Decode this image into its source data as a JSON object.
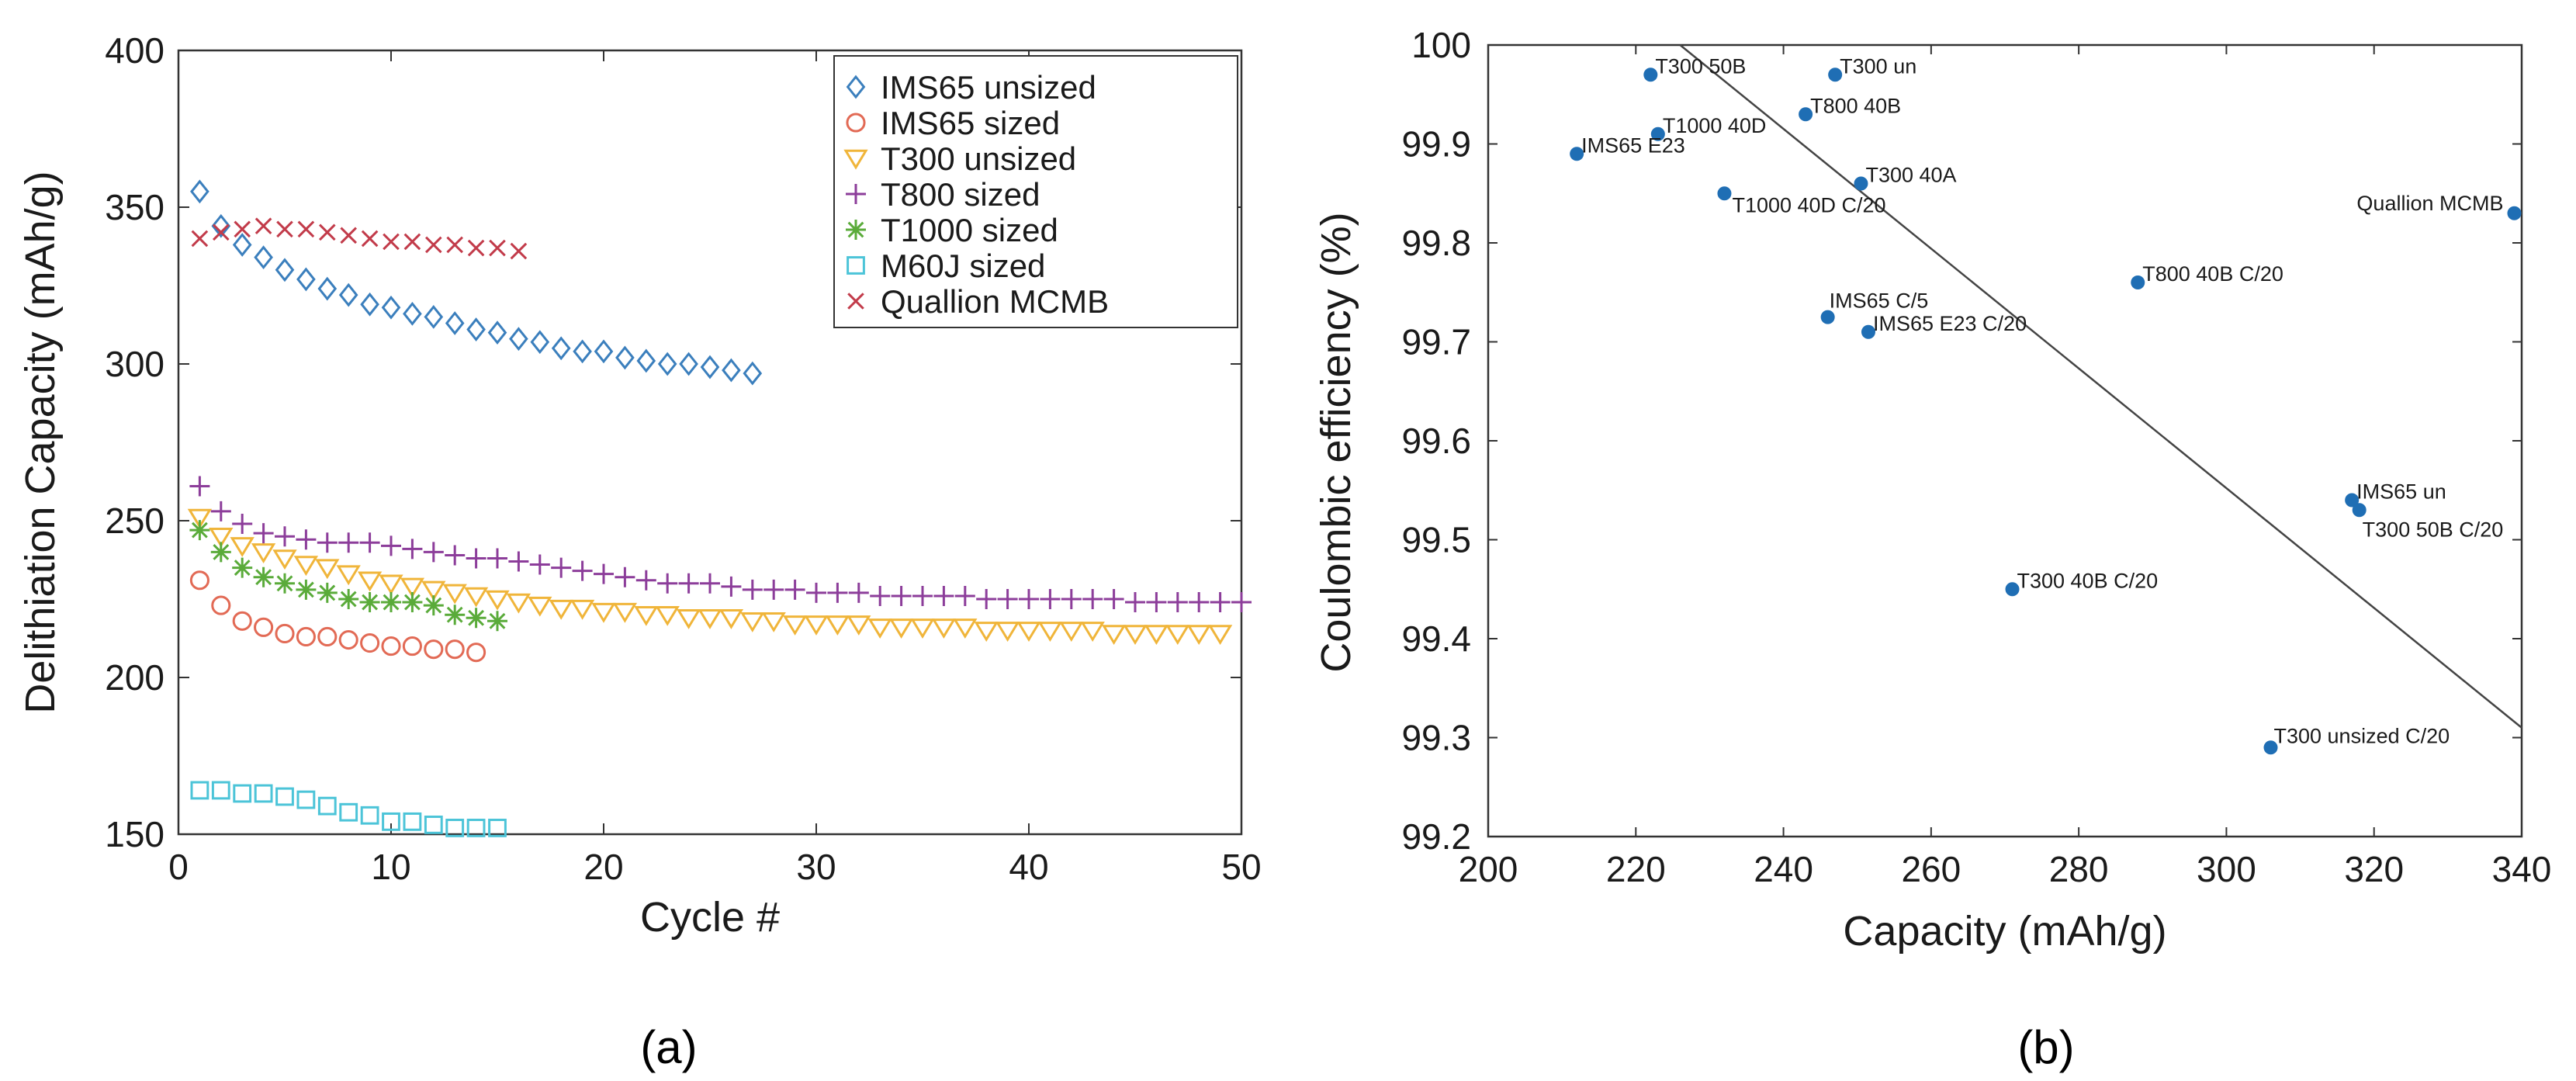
{
  "chart_data": [
    {
      "type": "scatter",
      "panel_label": "(a)",
      "xlabel": "Cycle #",
      "ylabel": "Delithiation Capacity (mAh/g)",
      "xlim": [
        0,
        50
      ],
      "ylim": [
        150,
        400
      ],
      "xticks": [
        0,
        10,
        20,
        30,
        40,
        50
      ],
      "yticks": [
        150,
        200,
        250,
        300,
        350,
        400
      ],
      "legend_position": "top-right",
      "series": [
        {
          "name": "IMS65 unsized",
          "marker": "diamond",
          "color": "#3b7fbd",
          "x": [
            1,
            2,
            3,
            4,
            5,
            6,
            7,
            8,
            9,
            10,
            11,
            12,
            13,
            14,
            15,
            16,
            17,
            18,
            19,
            20,
            21,
            22,
            23,
            24,
            25,
            26,
            27
          ],
          "y": [
            355,
            344,
            338,
            334,
            330,
            327,
            324,
            322,
            319,
            318,
            316,
            315,
            313,
            311,
            310,
            308,
            307,
            305,
            304,
            304,
            302,
            301,
            300,
            300,
            299,
            298,
            297
          ]
        },
        {
          "name": "IMS65 sized",
          "marker": "circle",
          "color": "#e26a55",
          "x": [
            1,
            2,
            3,
            4,
            5,
            6,
            7,
            8,
            9,
            10,
            11,
            12,
            13,
            14
          ],
          "y": [
            231,
            223,
            218,
            216,
            214,
            213,
            213,
            212,
            211,
            210,
            210,
            209,
            209,
            208
          ]
        },
        {
          "name": "T300 unsized",
          "marker": "triangle-down",
          "color": "#f0b53a",
          "x": [
            1,
            2,
            3,
            4,
            5,
            6,
            7,
            8,
            9,
            10,
            11,
            12,
            13,
            14,
            15,
            16,
            17,
            18,
            19,
            20,
            21,
            22,
            23,
            24,
            25,
            26,
            27,
            28,
            29,
            30,
            31,
            32,
            33,
            34,
            35,
            36,
            37,
            38,
            39,
            40,
            41,
            42,
            43,
            44,
            45,
            46,
            47,
            48,
            49
          ],
          "y": [
            251,
            245,
            242,
            240,
            238,
            236,
            235,
            233,
            231,
            230,
            229,
            228,
            227,
            226,
            225,
            224,
            223,
            222,
            222,
            221,
            221,
            220,
            220,
            219,
            219,
            219,
            218,
            218,
            217,
            217,
            217,
            217,
            216,
            216,
            216,
            216,
            216,
            215,
            215,
            215,
            215,
            215,
            215,
            214,
            214,
            214,
            214,
            214,
            214
          ]
        },
        {
          "name": "T800 sized",
          "marker": "plus",
          "color": "#8c3d9a",
          "x": [
            1,
            2,
            3,
            4,
            5,
            6,
            7,
            8,
            9,
            10,
            11,
            12,
            13,
            14,
            15,
            16,
            17,
            18,
            19,
            20,
            21,
            22,
            23,
            24,
            25,
            26,
            27,
            28,
            29,
            30,
            31,
            32,
            33,
            34,
            35,
            36,
            37,
            38,
            39,
            40,
            41,
            42,
            43,
            44,
            45,
            46,
            47,
            48,
            49,
            50
          ],
          "y": [
            261,
            253,
            249,
            246,
            245,
            244,
            243,
            243,
            243,
            242,
            241,
            240,
            239,
            238,
            238,
            237,
            236,
            235,
            234,
            233,
            232,
            231,
            230,
            230,
            230,
            229,
            228,
            228,
            228,
            227,
            227,
            227,
            226,
            226,
            226,
            226,
            226,
            225,
            225,
            225,
            225,
            225,
            225,
            225,
            224,
            224,
            224,
            224,
            224,
            224
          ]
        },
        {
          "name": "T1000 sized",
          "marker": "asterisk",
          "color": "#5aab3a",
          "x": [
            1,
            2,
            3,
            4,
            5,
            6,
            7,
            8,
            9,
            10,
            11,
            12,
            13,
            14,
            15
          ],
          "y": [
            247,
            240,
            235,
            232,
            230,
            228,
            227,
            225,
            224,
            224,
            224,
            223,
            220,
            219,
            218
          ]
        },
        {
          "name": "M60J sized",
          "marker": "square",
          "color": "#4cc4d8",
          "x": [
            1,
            2,
            3,
            4,
            5,
            6,
            7,
            8,
            9,
            10,
            11,
            12,
            13,
            14,
            15
          ],
          "y": [
            164,
            164,
            163,
            163,
            162,
            161,
            159,
            157,
            156,
            154,
            154,
            153,
            152,
            152,
            152
          ]
        },
        {
          "name": "Quallion MCMB",
          "marker": "cross",
          "color": "#c23b4a",
          "x": [
            1,
            2,
            3,
            4,
            5,
            6,
            7,
            8,
            9,
            10,
            11,
            12,
            13,
            14,
            15,
            16
          ],
          "y": [
            340,
            342,
            343,
            344,
            343,
            343,
            342,
            341,
            340,
            339,
            339,
            338,
            338,
            337,
            337,
            336
          ]
        }
      ]
    },
    {
      "type": "scatter",
      "panel_label": "(b)",
      "xlabel": "Capacity (mAh/g)",
      "ylabel": "Coulombic efficiency (%)",
      "xlim": [
        200,
        340
      ],
      "ylim": [
        99.2,
        100
      ],
      "xticks": [
        200,
        220,
        240,
        260,
        280,
        300,
        320,
        340
      ],
      "yticks": [
        "99.2",
        "99.3",
        "99.4",
        "99.5",
        "99.6",
        "99.7",
        "99.8",
        "99.9",
        "100"
      ],
      "point_color": "#1f6eb4",
      "points": [
        {
          "label": "T300 50B",
          "x": 222,
          "y": 99.97
        },
        {
          "label": "T300 un",
          "x": 247,
          "y": 99.97
        },
        {
          "label": "T800 40B",
          "x": 243,
          "y": 99.93
        },
        {
          "label": "T1000 40D",
          "x": 223,
          "y": 99.91
        },
        {
          "label": "IMS65 E23",
          "x": 212,
          "y": 99.89
        },
        {
          "label": "T300 40A",
          "x": 250.5,
          "y": 99.86
        },
        {
          "label": "T1000 40D C/20",
          "x": 232,
          "y": 99.85
        },
        {
          "label": "Quallion MCMB",
          "x": 339,
          "y": 99.83
        },
        {
          "label": "T800 40B C/20",
          "x": 288,
          "y": 99.76
        },
        {
          "label": "IMS65 C/5",
          "x": 246,
          "y": 99.725
        },
        {
          "label": "IMS65 E23 C/20",
          "x": 251.5,
          "y": 99.71
        },
        {
          "label": "IMS65 un",
          "x": 317,
          "y": 99.54
        },
        {
          "label": "T300 50B C/20",
          "x": 318,
          "y": 99.53
        },
        {
          "label": "T300 40B C/20",
          "x": 271,
          "y": 99.45
        },
        {
          "label": "T300 unsized C/20",
          "x": 306,
          "y": 99.29
        }
      ],
      "fit_line": {
        "x": [
          226,
          340
        ],
        "y": [
          100.0,
          99.31
        ]
      }
    }
  ]
}
